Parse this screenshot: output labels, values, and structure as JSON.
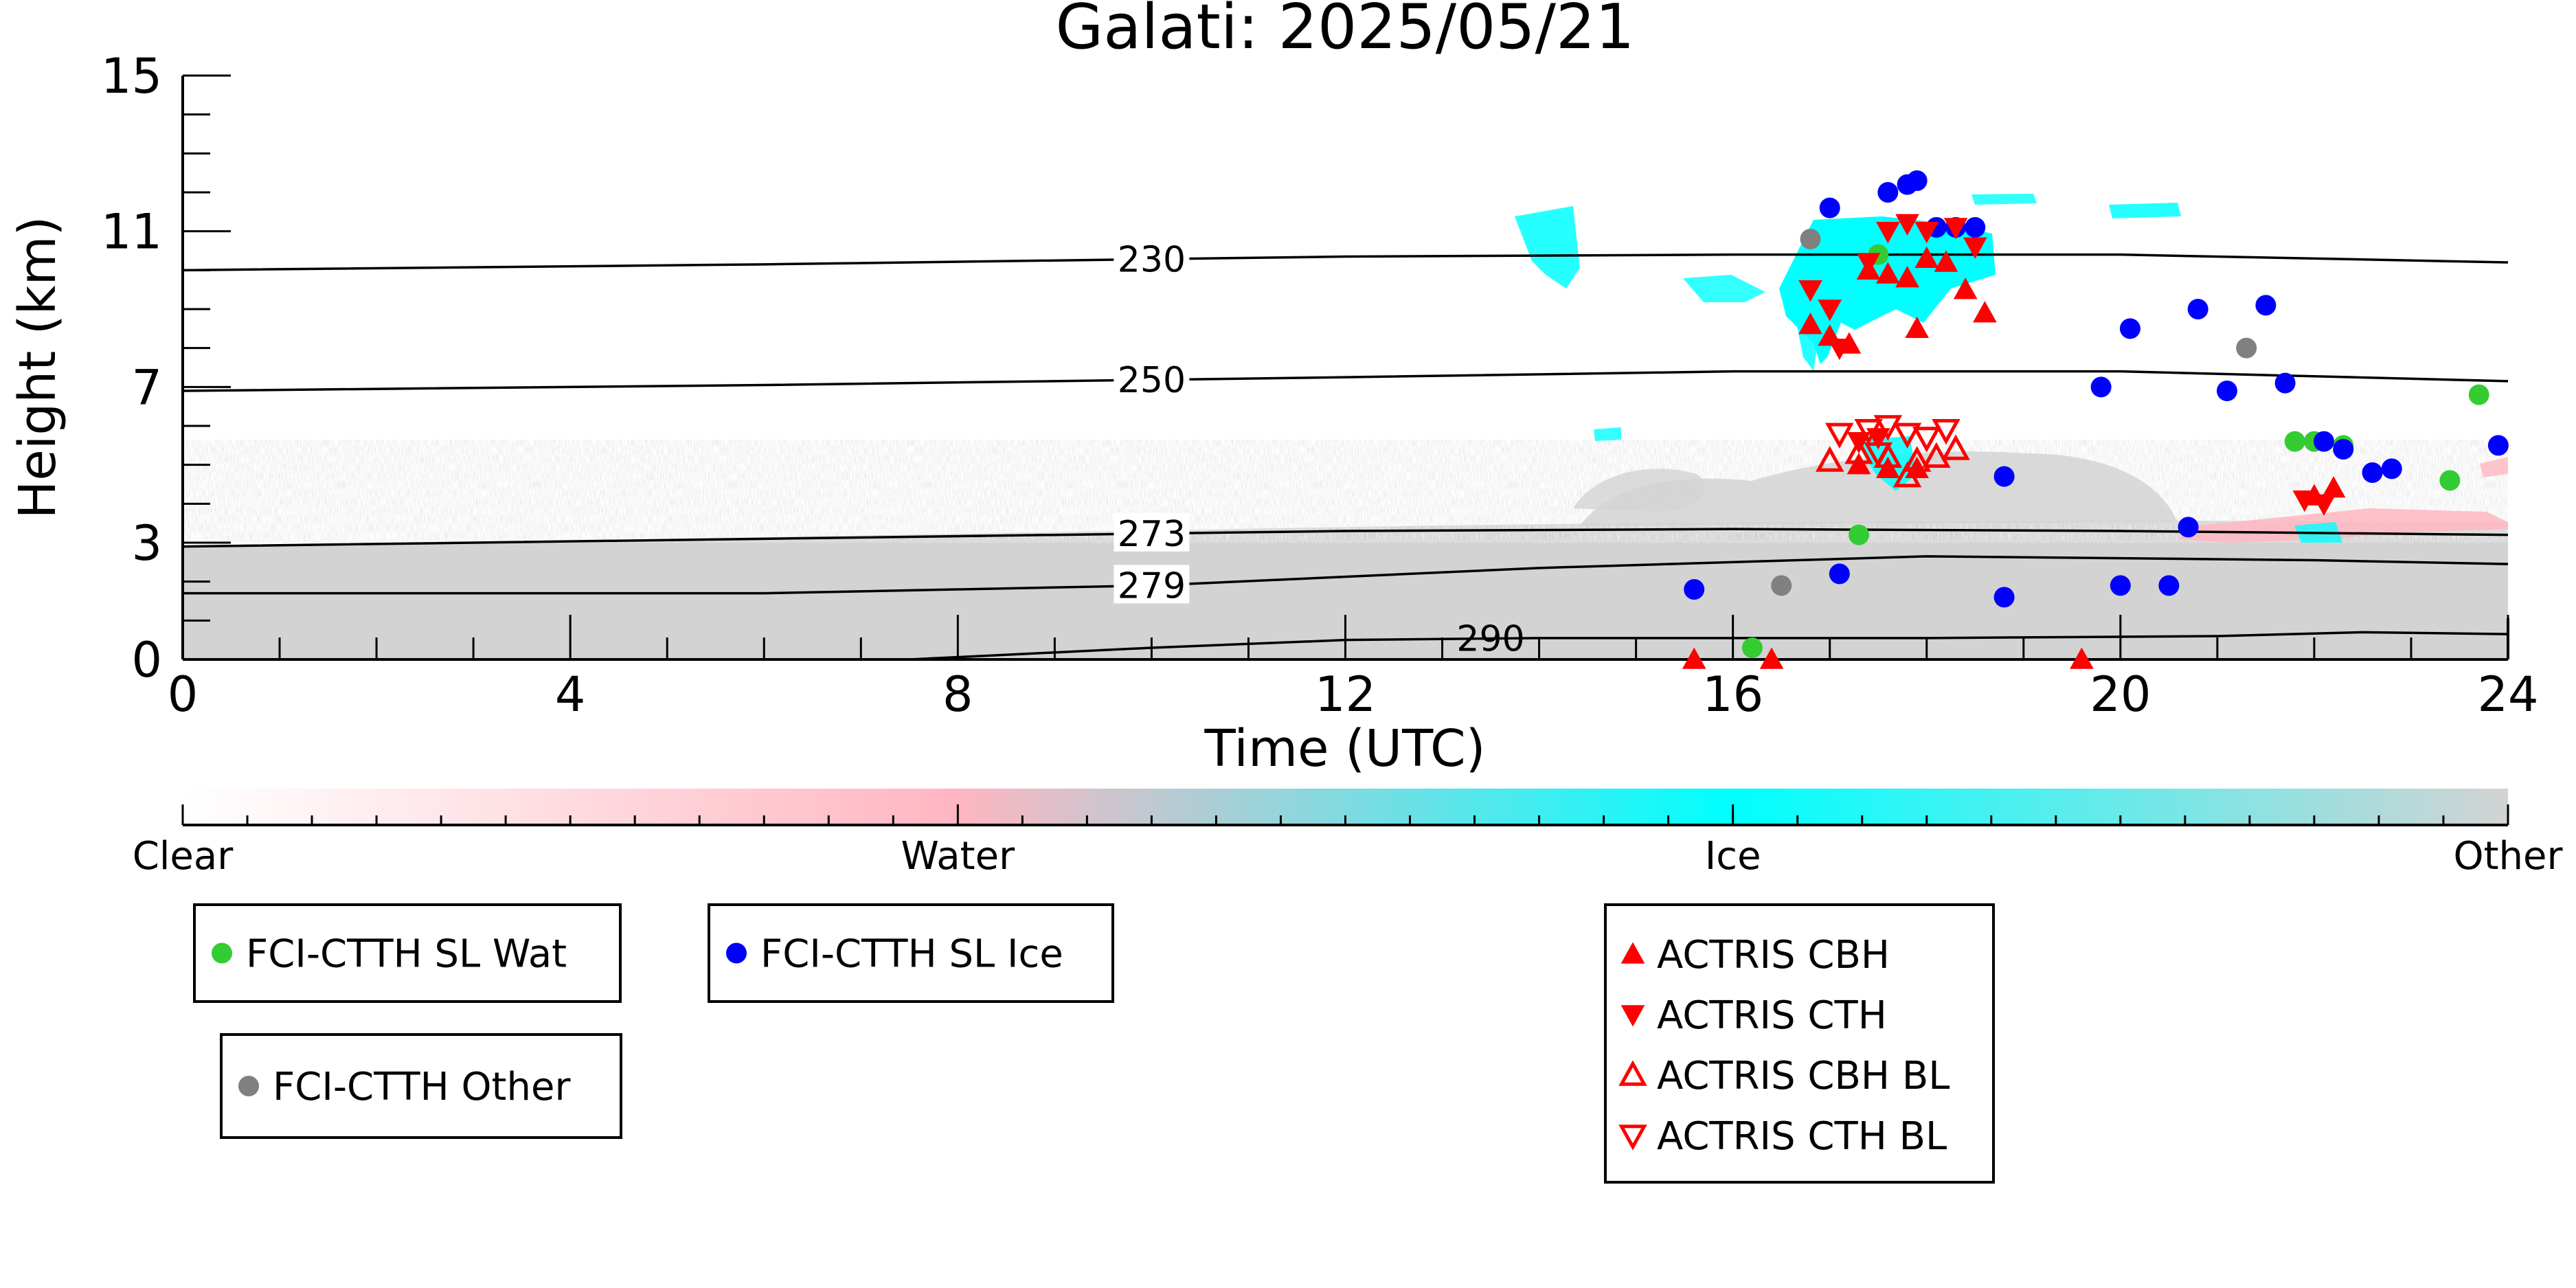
{
  "chart_data": {
    "type": "scatter",
    "title": "Galati: 2025/05/21",
    "xlabel": "Time (UTC)",
    "ylabel": "Height (km)",
    "xlim": [
      0,
      24
    ],
    "ylim": [
      0,
      15
    ],
    "x_ticks": [
      "0",
      "4",
      "8",
      "12",
      "16",
      "20",
      "24"
    ],
    "y_ticks": [
      "0",
      "3",
      "7",
      "11",
      "15"
    ],
    "grid": false,
    "legend_placement": "bottom",
    "colorbar": {
      "labels": [
        "Clear",
        "Water",
        "Ice",
        "Other"
      ],
      "colors": [
        "#ffffff",
        "#ffb6c1",
        "#00ffff",
        "#d3d3d3"
      ]
    },
    "isotherms": [
      {
        "label": "230",
        "points": [
          [
            0,
            10.0
          ],
          [
            6,
            10.15
          ],
          [
            12,
            10.35
          ],
          [
            16,
            10.4
          ],
          [
            20,
            10.4
          ],
          [
            24,
            10.2
          ]
        ]
      },
      {
        "label": "250",
        "points": [
          [
            0,
            6.9
          ],
          [
            6,
            7.05
          ],
          [
            12,
            7.25
          ],
          [
            16,
            7.4
          ],
          [
            20,
            7.4
          ],
          [
            24,
            7.15
          ]
        ]
      },
      {
        "label": "273",
        "points": [
          [
            0,
            2.9
          ],
          [
            6,
            3.1
          ],
          [
            12,
            3.3
          ],
          [
            16,
            3.35
          ],
          [
            20,
            3.3
          ],
          [
            24,
            3.2
          ]
        ]
      },
      {
        "label": "279",
        "points": [
          [
            0,
            1.7
          ],
          [
            6,
            1.7
          ],
          [
            10,
            1.9
          ],
          [
            14,
            2.35
          ],
          [
            18,
            2.65
          ],
          [
            22,
            2.55
          ],
          [
            24,
            2.45
          ]
        ]
      },
      {
        "label": "290",
        "points": [
          [
            7.5,
            0.0
          ],
          [
            10,
            0.3
          ],
          [
            12,
            0.5
          ],
          [
            14,
            0.55
          ],
          [
            18,
            0.55
          ],
          [
            21,
            0.6
          ],
          [
            22.5,
            0.7
          ],
          [
            24,
            0.65
          ]
        ]
      }
    ],
    "series": [
      {
        "name": "FCI-CTTH SL Wat",
        "marker": "circle",
        "color": "#33cc33",
        "points": [
          [
            16.2,
            0.3
          ],
          [
            17.3,
            3.2
          ],
          [
            17.5,
            10.4
          ],
          [
            21.8,
            5.6
          ],
          [
            22.0,
            5.6
          ],
          [
            22.3,
            5.5
          ],
          [
            23.4,
            4.6
          ],
          [
            23.7,
            6.8
          ]
        ]
      },
      {
        "name": "FCI-CTTH SL Ice",
        "marker": "circle",
        "color": "#0000ff",
        "points": [
          [
            15.6,
            1.8
          ],
          [
            17.0,
            11.6
          ],
          [
            17.1,
            2.2
          ],
          [
            17.6,
            12.0
          ],
          [
            17.8,
            12.2
          ],
          [
            17.9,
            12.3
          ],
          [
            18.1,
            11.1
          ],
          [
            18.3,
            11.1
          ],
          [
            18.5,
            11.1
          ],
          [
            18.8,
            4.7
          ],
          [
            18.8,
            1.6
          ],
          [
            19.8,
            7.0
          ],
          [
            20.1,
            8.5
          ],
          [
            20.7,
            3.4
          ],
          [
            20.8,
            9.0
          ],
          [
            21.1,
            6.9
          ],
          [
            21.5,
            9.1
          ],
          [
            21.7,
            7.1
          ],
          [
            22.1,
            5.6
          ],
          [
            22.3,
            5.4
          ],
          [
            22.6,
            4.8
          ],
          [
            22.8,
            4.9
          ],
          [
            23.9,
            5.5
          ],
          [
            20.5,
            1.9
          ],
          [
            20.0,
            1.9
          ]
        ]
      },
      {
        "name": "FCI-CTTH Other",
        "marker": "circle",
        "color": "#808080",
        "points": [
          [
            16.8,
            10.8
          ],
          [
            16.5,
            1.9
          ],
          [
            21.3,
            8.0
          ]
        ]
      },
      {
        "name": "ACTRIS CBH",
        "marker": "triangle-up",
        "color": "#ff0000",
        "points": [
          [
            15.6,
            0.0
          ],
          [
            16.4,
            0.0
          ],
          [
            19.6,
            0.0
          ],
          [
            16.8,
            8.6
          ],
          [
            17.0,
            8.3
          ],
          [
            17.2,
            8.1
          ],
          [
            17.4,
            10.0
          ],
          [
            17.6,
            9.9
          ],
          [
            17.8,
            9.8
          ],
          [
            18.0,
            10.3
          ],
          [
            18.2,
            10.2
          ],
          [
            18.4,
            9.5
          ],
          [
            18.6,
            8.9
          ],
          [
            17.9,
            8.5
          ],
          [
            17.3,
            5.0
          ],
          [
            17.6,
            4.9
          ],
          [
            17.9,
            4.9
          ],
          [
            22.0,
            4.2
          ],
          [
            22.2,
            4.4
          ]
        ]
      },
      {
        "name": "ACTRIS CTH",
        "marker": "triangle-down",
        "color": "#ff0000",
        "points": [
          [
            16.8,
            9.5
          ],
          [
            17.0,
            9.0
          ],
          [
            17.4,
            10.2
          ],
          [
            17.6,
            11.0
          ],
          [
            17.8,
            11.2
          ],
          [
            18.0,
            11.0
          ],
          [
            18.3,
            11.1
          ],
          [
            18.5,
            10.6
          ],
          [
            17.1,
            8.0
          ],
          [
            17.3,
            5.6
          ],
          [
            17.5,
            5.7
          ],
          [
            21.9,
            4.1
          ],
          [
            22.1,
            4.0
          ]
        ]
      },
      {
        "name": "ACTRIS CBH BL",
        "marker": "triangle-up-open",
        "color": "#ff0000",
        "points": [
          [
            17.0,
            5.1
          ],
          [
            17.3,
            5.3
          ],
          [
            17.6,
            5.2
          ],
          [
            17.9,
            5.1
          ],
          [
            18.1,
            5.2
          ],
          [
            18.3,
            5.4
          ],
          [
            17.8,
            4.7
          ]
        ]
      },
      {
        "name": "ACTRIS CTH BL",
        "marker": "triangle-down-open",
        "color": "#ff0000",
        "points": [
          [
            17.1,
            5.8
          ],
          [
            17.4,
            5.9
          ],
          [
            17.6,
            6.0
          ],
          [
            17.8,
            5.8
          ],
          [
            18.0,
            5.7
          ],
          [
            18.2,
            5.9
          ],
          [
            17.5,
            5.3
          ]
        ]
      }
    ],
    "legend_groups": [
      [
        "FCI-CTTH SL Wat"
      ],
      [
        "FCI-CTTH Other"
      ],
      [
        "FCI-CTTH SL Ice"
      ],
      [
        "ACTRIS CBH",
        "ACTRIS CTH",
        "ACTRIS CBH BL",
        "ACTRIS CTH BL"
      ]
    ]
  }
}
